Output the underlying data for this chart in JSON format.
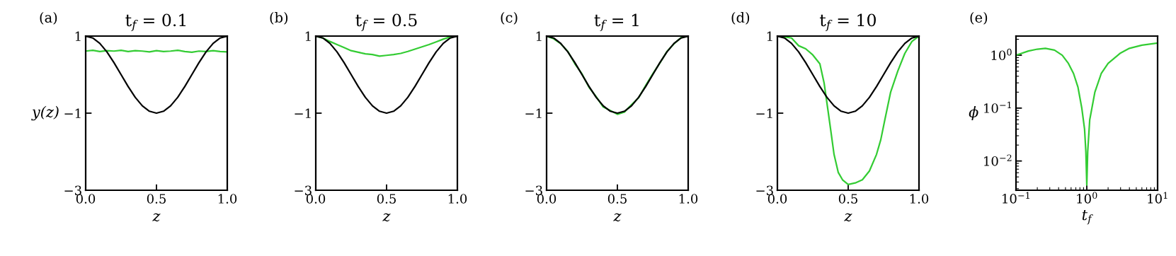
{
  "chart_data": [
    {
      "type": "line",
      "title": "t$_{f}$ = 0.1",
      "xlabel": "z",
      "ylabel": "y(z)",
      "annotations": [
        "(a)"
      ],
      "xlim": [
        0,
        1
      ],
      "ylim": [
        -3,
        1
      ],
      "xticks": [
        {
          "value": 0,
          "label": "0.0"
        },
        {
          "value": 0.5,
          "label": "0.5"
        },
        {
          "value": 1,
          "label": "1.0"
        }
      ],
      "yticks": [
        {
          "value": -3,
          "label": "−3"
        },
        {
          "value": -1,
          "label": "−1"
        },
        1
      ],
      "grid": false,
      "series": [
        {
          "color": "#33cc33",
          "x": [
            0,
            0.05,
            0.1,
            0.15,
            0.2,
            0.25,
            0.3,
            0.35,
            0.4,
            0.45,
            0.5,
            0.55,
            0.6,
            0.65,
            0.7,
            0.75,
            0.8,
            0.85,
            0.9,
            0.95,
            1.0
          ],
          "values": [
            0.61,
            0.63,
            0.6,
            0.62,
            0.61,
            0.63,
            0.6,
            0.62,
            0.61,
            0.59,
            0.62,
            0.6,
            0.61,
            0.63,
            0.6,
            0.58,
            0.61,
            0.6,
            0.62,
            0.6,
            0.59
          ]
        },
        {
          "color": "#000000",
          "x": [
            0,
            0.05,
            0.1,
            0.15,
            0.2,
            0.25,
            0.3,
            0.35,
            0.4,
            0.45,
            0.5,
            0.55,
            0.6,
            0.65,
            0.7,
            0.75,
            0.8,
            0.85,
            0.9,
            0.95,
            1.0
          ],
          "values": [
            1,
            0.95,
            0.81,
            0.59,
            0.31,
            0,
            -0.31,
            -0.59,
            -0.81,
            -0.95,
            -1,
            -0.95,
            -0.81,
            -0.59,
            -0.31,
            0,
            0.31,
            0.59,
            0.81,
            0.95,
            1
          ]
        }
      ]
    },
    {
      "type": "line",
      "title": "t$_{f}$ = 0.5",
      "xlabel": "z",
      "annotations": [
        "(b)"
      ],
      "xlim": [
        0,
        1
      ],
      "ylim": [
        -3,
        1
      ],
      "xticks": [
        {
          "value": 0,
          "label": "0.0"
        },
        {
          "value": 0.5,
          "label": "0.5"
        },
        {
          "value": 1,
          "label": "1.0"
        }
      ],
      "yticks": [
        {
          "value": -3,
          "label": "−3"
        },
        {
          "value": -1,
          "label": "−1"
        },
        1
      ],
      "grid": false,
      "series": [
        {
          "color": "#33cc33",
          "x": [
            0,
            0.05,
            0.1,
            0.15,
            0.2,
            0.25,
            0.3,
            0.35,
            0.4,
            0.45,
            0.5,
            0.55,
            0.6,
            0.65,
            0.7,
            0.75,
            0.8,
            0.85,
            0.9,
            0.95,
            1.0
          ],
          "values": [
            1,
            0.95,
            0.86,
            0.78,
            0.7,
            0.62,
            0.58,
            0.54,
            0.52,
            0.48,
            0.5,
            0.52,
            0.55,
            0.6,
            0.66,
            0.72,
            0.78,
            0.85,
            0.92,
            0.98,
            1
          ]
        },
        {
          "color": "#000000",
          "x": [
            0,
            0.05,
            0.1,
            0.15,
            0.2,
            0.25,
            0.3,
            0.35,
            0.4,
            0.45,
            0.5,
            0.55,
            0.6,
            0.65,
            0.7,
            0.75,
            0.8,
            0.85,
            0.9,
            0.95,
            1.0
          ],
          "values": [
            1,
            0.95,
            0.81,
            0.59,
            0.31,
            0,
            -0.31,
            -0.59,
            -0.81,
            -0.95,
            -1,
            -0.95,
            -0.81,
            -0.59,
            -0.31,
            0,
            0.31,
            0.59,
            0.81,
            0.95,
            1
          ]
        }
      ]
    },
    {
      "type": "line",
      "title": "t$_{f}$ = 1",
      "xlabel": "z",
      "annotations": [
        "(c)"
      ],
      "xlim": [
        0,
        1
      ],
      "ylim": [
        -3,
        1
      ],
      "xticks": [
        {
          "value": 0,
          "label": "0.0"
        },
        {
          "value": 0.5,
          "label": "0.5"
        },
        {
          "value": 1,
          "label": "1.0"
        }
      ],
      "yticks": [
        {
          "value": -3,
          "label": "−3"
        },
        {
          "value": -1,
          "label": "−1"
        },
        1
      ],
      "grid": false,
      "series": [
        {
          "color": "#33cc33",
          "x": [
            0,
            0.05,
            0.1,
            0.15,
            0.2,
            0.25,
            0.3,
            0.35,
            0.4,
            0.45,
            0.5,
            0.55,
            0.6,
            0.65,
            0.7,
            0.75,
            0.8,
            0.85,
            0.9,
            0.95,
            1.0
          ],
          "values": [
            1,
            0.93,
            0.8,
            0.6,
            0.28,
            0.02,
            -0.33,
            -0.57,
            -0.84,
            -0.93,
            -1.03,
            -0.97,
            -0.78,
            -0.6,
            -0.28,
            0.02,
            0.3,
            0.6,
            0.8,
            0.96,
            1
          ]
        },
        {
          "color": "#000000",
          "x": [
            0,
            0.05,
            0.1,
            0.15,
            0.2,
            0.25,
            0.3,
            0.35,
            0.4,
            0.45,
            0.5,
            0.55,
            0.6,
            0.65,
            0.7,
            0.75,
            0.8,
            0.85,
            0.9,
            0.95,
            1.0
          ],
          "values": [
            1,
            0.95,
            0.81,
            0.59,
            0.31,
            0,
            -0.31,
            -0.59,
            -0.81,
            -0.95,
            -1,
            -0.95,
            -0.81,
            -0.59,
            -0.31,
            0,
            0.31,
            0.59,
            0.81,
            0.95,
            1
          ]
        }
      ]
    },
    {
      "type": "line",
      "title": "t$_{f}$ = 10",
      "xlabel": "z",
      "annotations": [
        "(d)"
      ],
      "xlim": [
        0,
        1
      ],
      "ylim": [
        -3,
        1
      ],
      "xticks": [
        {
          "value": 0,
          "label": "0.0"
        },
        {
          "value": 0.5,
          "label": "0.5"
        },
        {
          "value": 1,
          "label": "1.0"
        }
      ],
      "yticks": [
        {
          "value": -3,
          "label": "−3"
        },
        {
          "value": -1,
          "label": "−1"
        },
        1
      ],
      "grid": false,
      "series": [
        {
          "color": "#33cc33",
          "x": [
            0,
            0.05,
            0.1,
            0.15,
            0.2,
            0.25,
            0.3,
            0.33,
            0.36,
            0.38,
            0.4,
            0.43,
            0.46,
            0.5,
            0.55,
            0.6,
            0.65,
            0.7,
            0.73,
            0.76,
            0.8,
            0.85,
            0.9,
            0.95,
            1.0
          ],
          "values": [
            1,
            0.98,
            0.95,
            0.75,
            0.67,
            0.51,
            0.28,
            -0.22,
            -1.0,
            -1.53,
            -2.07,
            -2.54,
            -2.73,
            -2.85,
            -2.81,
            -2.73,
            -2.5,
            -2.07,
            -1.69,
            -1.15,
            -0.45,
            0.09,
            0.55,
            0.86,
            1
          ]
        },
        {
          "color": "#000000",
          "x": [
            0,
            0.05,
            0.1,
            0.15,
            0.2,
            0.25,
            0.3,
            0.35,
            0.4,
            0.45,
            0.5,
            0.55,
            0.6,
            0.65,
            0.7,
            0.75,
            0.8,
            0.85,
            0.9,
            0.95,
            1.0
          ],
          "values": [
            1,
            0.95,
            0.81,
            0.59,
            0.31,
            0,
            -0.31,
            -0.59,
            -0.81,
            -0.95,
            -1,
            -0.95,
            -0.81,
            -0.59,
            -0.31,
            0,
            0.31,
            0.59,
            0.81,
            0.95,
            1
          ]
        }
      ]
    },
    {
      "type": "line",
      "xlabel": "t$_{f}$",
      "ylabel": "ϕ",
      "annotations": [
        "(e)"
      ],
      "log": "xy",
      "xlim": [
        0.1,
        10
      ],
      "ylim": [
        0.0028,
        2.3
      ],
      "xticks": [
        {
          "value": 0.1,
          "label": "10$^{−1}$"
        },
        {
          "value": 1,
          "label": "10$^{0}$"
        },
        {
          "value": 10,
          "label": "10$^{1}$"
        }
      ],
      "yticks": [
        {
          "value": 0.01,
          "label": "10$^{−2}$"
        },
        {
          "value": 0.1,
          "label": "10$^{−1}$"
        },
        {
          "value": 1,
          "label": "10$^{0}$"
        }
      ],
      "grid": false,
      "series": [
        {
          "color": "#33cc33",
          "x": [
            0.1,
            0.15,
            0.2,
            0.26,
            0.35,
            0.45,
            0.55,
            0.65,
            0.75,
            0.85,
            0.93,
            0.97,
            1.0,
            1.03,
            1.1,
            1.3,
            1.6,
            2,
            3,
            4,
            6,
            10
          ],
          "values": [
            1.0,
            1.2,
            1.3,
            1.35,
            1.25,
            1.0,
            0.7,
            0.45,
            0.25,
            0.1,
            0.04,
            0.015,
            0.0035,
            0.015,
            0.06,
            0.2,
            0.45,
            0.7,
            1.1,
            1.35,
            1.55,
            1.7
          ]
        }
      ]
    }
  ]
}
